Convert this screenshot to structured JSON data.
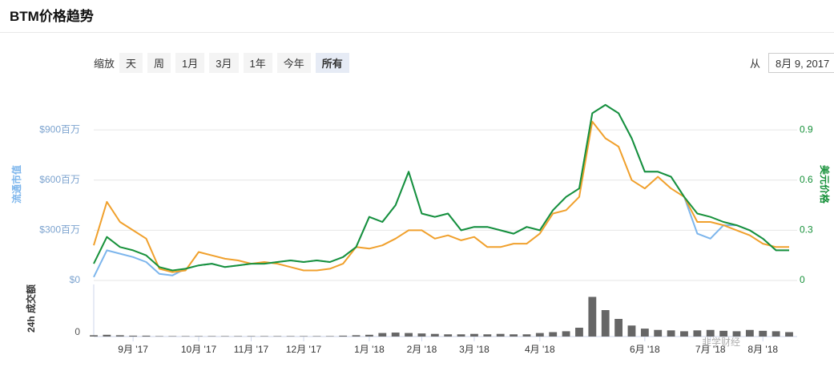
{
  "header": {
    "title": "BTM价格趋势"
  },
  "zoom": {
    "label": "缩放",
    "buttons": [
      "天",
      "周",
      "1月",
      "3月",
      "1年",
      "今年",
      "所有"
    ],
    "selected": 6
  },
  "range": {
    "label": "从",
    "from": "8月 9, 2017"
  },
  "watermark": "韭学财经",
  "chart_data": {
    "type": "line",
    "categories": [
      null,
      null,
      null,
      "9月 '17",
      null,
      null,
      null,
      null,
      "10月 '17",
      null,
      null,
      null,
      "11月 '17",
      null,
      null,
      null,
      "12月 '17",
      null,
      null,
      null,
      null,
      "1月 '18",
      null,
      null,
      null,
      "2月 '18",
      null,
      null,
      null,
      "3月 '18",
      null,
      null,
      null,
      null,
      "4月 '18",
      null,
      null,
      null,
      null,
      null,
      null,
      null,
      "6月 '18",
      null,
      null,
      null,
      null,
      "7月 '18",
      null,
      null,
      null,
      "8月 '18",
      null,
      null
    ],
    "series": [
      {
        "name": "流通市值",
        "color": "#7cb5ec",
        "axis": "y",
        "values": [
          20,
          180,
          160,
          140,
          110,
          40,
          30,
          70,
          90,
          100,
          80,
          90,
          100,
          100,
          110,
          120,
          110,
          120,
          110,
          140,
          200,
          380,
          350,
          450,
          650,
          400,
          380,
          400,
          300,
          320,
          320,
          300,
          280,
          320,
          300,
          420,
          500,
          550,
          1000,
          1050,
          1000,
          850,
          650,
          650,
          620,
          500,
          280,
          250,
          330,
          330,
          300,
          250,
          180,
          180
        ]
      },
      {
        "name": "美元价格",
        "color": "#17913a",
        "axis": "y2",
        "values": [
          0.1,
          0.26,
          0.2,
          0.18,
          0.15,
          0.08,
          0.06,
          0.07,
          0.09,
          0.1,
          0.08,
          0.09,
          0.1,
          0.1,
          0.11,
          0.12,
          0.11,
          0.12,
          0.11,
          0.14,
          0.2,
          0.38,
          0.35,
          0.45,
          0.65,
          0.4,
          0.38,
          0.4,
          0.3,
          0.32,
          0.32,
          0.3,
          0.28,
          0.32,
          0.3,
          0.42,
          0.5,
          0.55,
          1.0,
          1.05,
          1.0,
          0.85,
          0.65,
          0.65,
          0.62,
          0.5,
          0.4,
          0.38,
          0.35,
          0.33,
          0.3,
          0.25,
          0.18,
          0.18
        ]
      },
      {
        "color": "#f0a02c",
        "axis": "y2",
        "values": [
          0.21,
          0.47,
          0.35,
          0.3,
          0.25,
          0.07,
          0.05,
          0.06,
          0.17,
          0.15,
          0.13,
          0.12,
          0.1,
          0.11,
          0.1,
          0.08,
          0.06,
          0.06,
          0.07,
          0.1,
          0.2,
          0.19,
          0.21,
          0.25,
          0.3,
          0.3,
          0.25,
          0.27,
          0.24,
          0.26,
          0.2,
          0.2,
          0.22,
          0.22,
          0.28,
          0.4,
          0.42,
          0.5,
          0.95,
          0.85,
          0.8,
          0.6,
          0.55,
          0.62,
          0.55,
          0.5,
          0.35,
          0.35,
          0.33,
          0.3,
          0.27,
          0.22,
          0.2,
          0.2
        ]
      }
    ],
    "ylim": [
      0,
      1150
    ],
    "yticks": [
      {
        "value": 0,
        "label": "$0"
      },
      {
        "value": 300,
        "label": "$300百万"
      },
      {
        "value": 600,
        "label": "$600百万"
      },
      {
        "value": 900,
        "label": "$900百万"
      }
    ],
    "y2lim": [
      0,
      1.15
    ],
    "y2ticks": [
      0,
      0.3,
      0.6,
      0.9
    ],
    "grid": true,
    "volume": {
      "type": "bar",
      "name": "24h 成交额",
      "color": "#666666",
      "values": [
        3,
        4,
        3,
        2,
        2,
        1,
        1,
        1,
        1,
        1,
        1,
        1,
        1,
        1,
        1,
        1,
        1,
        1,
        1,
        2,
        3,
        4,
        8,
        9,
        8,
        7,
        6,
        5,
        5,
        6,
        5,
        6,
        5,
        5,
        8,
        10,
        12,
        20,
        90,
        60,
        40,
        25,
        18,
        15,
        14,
        12,
        14,
        15,
        13,
        12,
        15,
        13,
        12,
        10
      ],
      "ylim": [
        0,
        100
      ],
      "yticks": [
        0
      ]
    }
  }
}
